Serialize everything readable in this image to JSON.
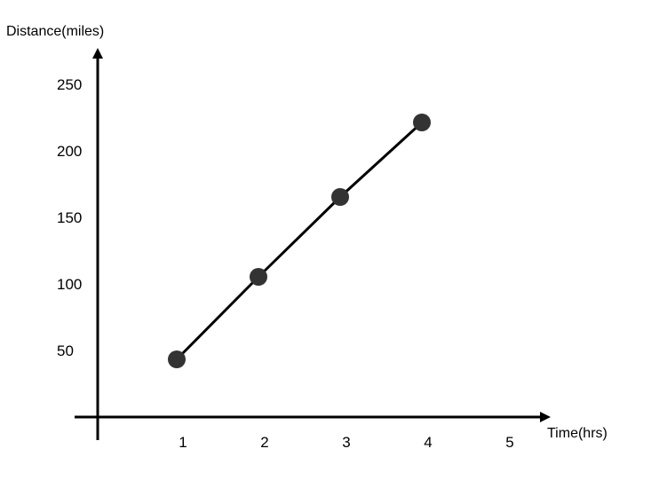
{
  "chart_data": {
    "type": "line",
    "title": "",
    "xlabel": "Time(hrs)",
    "ylabel": "Distance(miles)",
    "x_ticks": [
      1,
      2,
      3,
      4,
      5
    ],
    "y_ticks": [
      50,
      100,
      150,
      200,
      250
    ],
    "xlim": [
      0,
      5.4
    ],
    "ylim": [
      0,
      280
    ],
    "grid": false,
    "series": [
      {
        "x": [
          1,
          2,
          3,
          4
        ],
        "y": [
          44,
          106,
          166,
          222
        ],
        "color": "#333333"
      }
    ],
    "line_color": "#000000",
    "axis_color": "#000000"
  }
}
